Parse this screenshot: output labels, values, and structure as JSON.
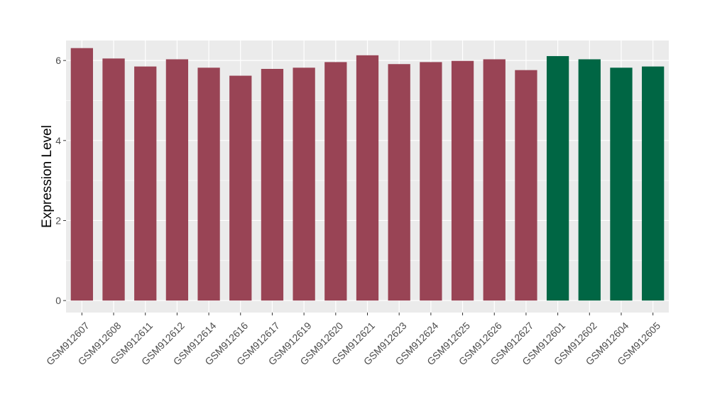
{
  "chart_data": {
    "type": "bar",
    "title": "",
    "xlabel": "",
    "ylabel": "Expression Level",
    "ylim": [
      -0.3,
      6.5
    ],
    "yticks": [
      0,
      2,
      4,
      6
    ],
    "grid": true,
    "categories": [
      "GSM912607",
      "GSM912608",
      "GSM912611",
      "GSM912612",
      "GSM912614",
      "GSM912616",
      "GSM912617",
      "GSM912619",
      "GSM912620",
      "GSM912621",
      "GSM912623",
      "GSM912624",
      "GSM912625",
      "GSM912626",
      "GSM912627",
      "GSM912601",
      "GSM912602",
      "GSM912604",
      "GSM912605"
    ],
    "values": [
      6.31,
      6.05,
      5.85,
      6.03,
      5.82,
      5.62,
      5.79,
      5.82,
      5.96,
      6.13,
      5.91,
      5.96,
      5.99,
      6.03,
      5.76,
      6.11,
      6.03,
      5.82,
      5.85
    ],
    "bar_colors": [
      "#994455",
      "#994455",
      "#994455",
      "#994455",
      "#994455",
      "#994455",
      "#994455",
      "#994455",
      "#994455",
      "#994455",
      "#994455",
      "#994455",
      "#994455",
      "#994455",
      "#994455",
      "#006644",
      "#006644",
      "#006644",
      "#006644"
    ],
    "panel_background": "#ebebeb",
    "grid_color": "#ffffff"
  }
}
